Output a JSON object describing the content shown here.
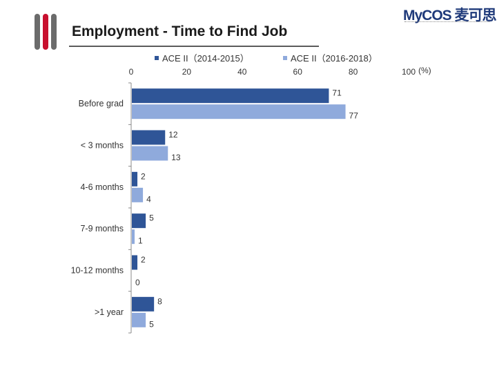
{
  "slide": {
    "title": "Employment - Time to Find Job",
    "logo_text": "MyCOS 麦可思"
  },
  "colors": {
    "series1": "#2f5597",
    "series2": "#8faadc",
    "axis": "#888888",
    "accent": "#c8102e"
  },
  "chart_data": {
    "type": "bar",
    "orientation": "horizontal",
    "title": "Employment - Time to Find Job",
    "categories": [
      "Before grad",
      "< 3 months",
      "4-6 months",
      "7-9 months",
      "10-12 months",
      ">1 year"
    ],
    "series": [
      {
        "name": "ACE II（2014-2015）",
        "values": [
          71,
          12,
          2,
          5,
          2,
          8
        ]
      },
      {
        "name": "ACE II（2016-2018）",
        "values": [
          77,
          13,
          4,
          1,
          0,
          5
        ]
      }
    ],
    "xlim": [
      0,
      100
    ],
    "x_ticks": [
      "0",
      "20",
      "40",
      "60",
      "80",
      "100"
    ],
    "x_unit": "(%)",
    "xaxis_position": "top",
    "legend_position": "top",
    "grid": false,
    "data_labels": true
  }
}
